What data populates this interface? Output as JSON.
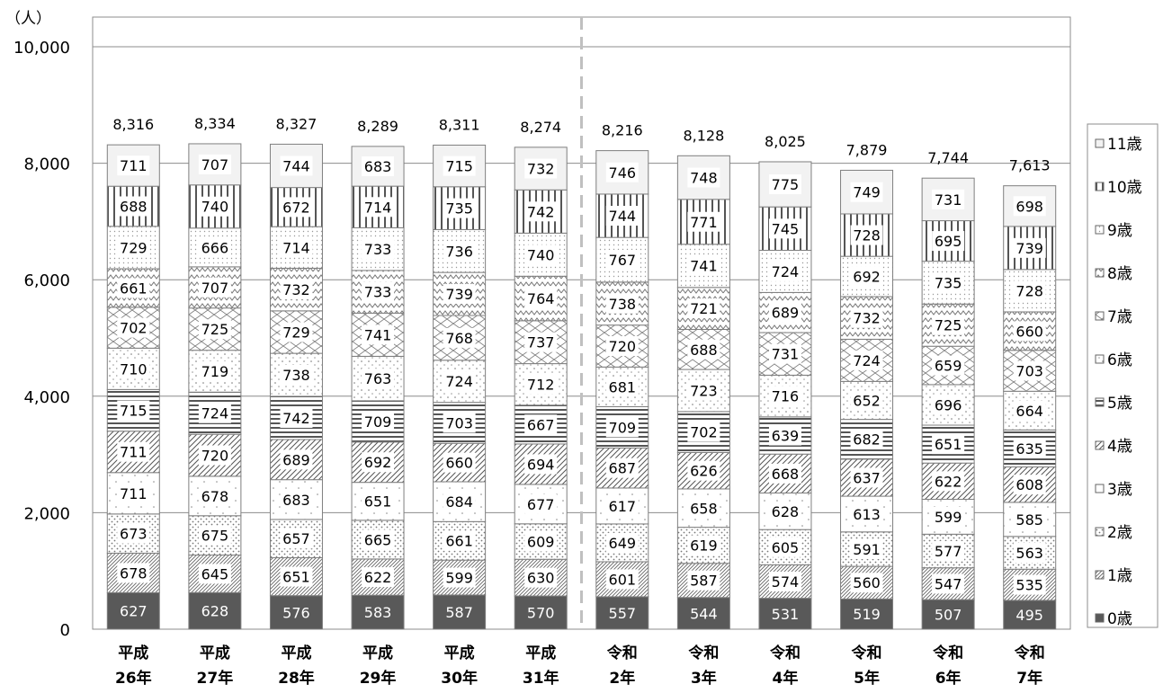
{
  "chart_data": {
    "type": "bar",
    "stacked": true,
    "y_unit": "（人）",
    "ylim": [
      0,
      10500
    ],
    "yticks": [
      0,
      2000,
      4000,
      6000,
      8000,
      10000
    ],
    "ytick_labels": [
      "0",
      "2,000",
      "4,000",
      "6,000",
      "8,000",
      "10,000"
    ],
    "grid": true,
    "legend_position": "right",
    "categories": [
      [
        "平成",
        "26年"
      ],
      [
        "平成",
        "27年"
      ],
      [
        "平成",
        "28年"
      ],
      [
        "平成",
        "29年"
      ],
      [
        "平成",
        "30年"
      ],
      [
        "平成",
        "31年"
      ],
      [
        "令和",
        "2年"
      ],
      [
        "令和",
        "3年"
      ],
      [
        "令和",
        "4年"
      ],
      [
        "令和",
        "5年"
      ],
      [
        "令和",
        "6年"
      ],
      [
        "令和",
        "7年"
      ]
    ],
    "era_divider_after_index": 5,
    "totals": [
      "8,316",
      "8,334",
      "8,327",
      "8,289",
      "8,311",
      "8,274",
      "8,216",
      "8,128",
      "8,025",
      "7,879",
      "7,744",
      "7,613"
    ],
    "series": [
      {
        "name": "0歳",
        "pattern": "solid",
        "values": [
          627,
          628,
          576,
          583,
          587,
          570,
          557,
          544,
          531,
          519,
          507,
          495
        ]
      },
      {
        "name": "1歳",
        "pattern": "diag",
        "values": [
          678,
          645,
          651,
          622,
          599,
          630,
          601,
          587,
          574,
          560,
          547,
          535
        ]
      },
      {
        "name": "2歳",
        "pattern": "dots",
        "values": [
          673,
          675,
          657,
          665,
          661,
          609,
          649,
          619,
          605,
          591,
          577,
          563
        ]
      },
      {
        "name": "3歳",
        "pattern": "sparse",
        "values": [
          711,
          678,
          683,
          651,
          684,
          677,
          617,
          658,
          628,
          613,
          599,
          585
        ]
      },
      {
        "name": "4歳",
        "pattern": "diagwide",
        "values": [
          711,
          720,
          689,
          692,
          660,
          694,
          687,
          626,
          668,
          637,
          622,
          608
        ]
      },
      {
        "name": "5歳",
        "pattern": "hlines",
        "values": [
          715,
          724,
          742,
          709,
          703,
          667,
          709,
          702,
          639,
          682,
          651,
          635
        ]
      },
      {
        "name": "6歳",
        "pattern": "dotgrid",
        "values": [
          710,
          719,
          738,
          763,
          724,
          712,
          681,
          723,
          716,
          652,
          696,
          664
        ]
      },
      {
        "name": "7歳",
        "pattern": "crosshatch",
        "values": [
          702,
          725,
          729,
          741,
          768,
          737,
          720,
          688,
          731,
          724,
          659,
          703
        ]
      },
      {
        "name": "8歳",
        "pattern": "wave",
        "values": [
          661,
          707,
          732,
          733,
          739,
          764,
          738,
          721,
          689,
          732,
          725,
          660
        ]
      },
      {
        "name": "9歳",
        "pattern": "finedots",
        "values": [
          729,
          666,
          714,
          733,
          736,
          740,
          767,
          741,
          724,
          692,
          735,
          728
        ]
      },
      {
        "name": "10歳",
        "pattern": "vlines",
        "values": [
          688,
          740,
          672,
          714,
          735,
          742,
          744,
          771,
          745,
          728,
          695,
          739
        ]
      },
      {
        "name": "11歳",
        "pattern": "light",
        "values": [
          711,
          707,
          744,
          683,
          715,
          732,
          746,
          748,
          775,
          749,
          731,
          698
        ]
      }
    ]
  }
}
